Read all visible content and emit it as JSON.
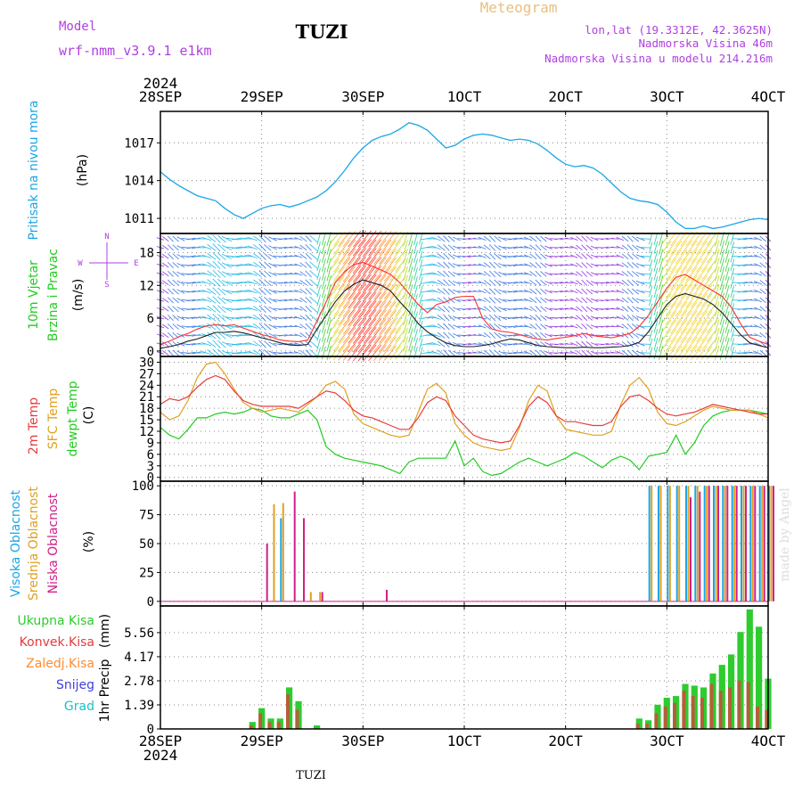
{
  "header": {
    "model_label": "Model",
    "model_name": "wrf-nmm_v3.9.1  e1km",
    "station": "TUZI",
    "product": "Meteogram",
    "location": "lon,lat (19.3312E, 42.3625N)",
    "altitude": "Nadmorska Visina 46m",
    "model_altitude": "Nadmorska Visina u modelu 214.216m",
    "footer_station": "TUZI",
    "credit": "made by Angel"
  },
  "colors": {
    "pressure": "#1aa6e6",
    "wind_speed": "#202020",
    "wind_gust": "#ff3030",
    "t2m": "#e63c3c",
    "tsfc": "#e0a020",
    "dewpoint": "#22cc22",
    "cloud_high": "#1aa6e6",
    "cloud_mid": "#e0a020",
    "cloud_low": "#d0208a",
    "precip_total": "#2ecc2e",
    "precip_conv": "#e03c3c",
    "precip_frozen": "#ff8c2e",
    "snow": "#4040e0",
    "hail": "#20c0c0",
    "label_purple": "#b040e0",
    "title_gold": "#e8c080",
    "credit": "#d8e0d8"
  },
  "time_axis": {
    "top_year": "2024",
    "bottom_year": "2024",
    "ticks": [
      "28SEP",
      "29SEP",
      "30SEP",
      "1OCT",
      "2OCT",
      "3OCT",
      "4OCT"
    ]
  },
  "wind_legend": {
    "north": "N",
    "south": "S",
    "east": "E",
    "west": "W"
  },
  "chart_data": [
    {
      "id": "pressure",
      "type": "line",
      "ylabel": "Pritisak na nivou mora",
      "unit": "(hPa)",
      "y_ticks": [
        1011,
        1014,
        1017
      ],
      "ylim": [
        1009.8,
        1019.5
      ],
      "x_range_days": [
        0,
        6
      ],
      "series": [
        {
          "values": [
            1014.7,
            1014.1,
            1013.6,
            1013.2,
            1012.8,
            1012.6,
            1012.4,
            1011.8,
            1011.3,
            1011.0,
            1011.4,
            1011.8,
            1012.0,
            1012.1,
            1011.9,
            1012.1,
            1012.4,
            1012.7,
            1013.2,
            1013.9,
            1014.8,
            1015.8,
            1016.6,
            1017.2,
            1017.5,
            1017.7,
            1018.1,
            1018.6,
            1018.4,
            1018.0,
            1017.3,
            1016.6,
            1016.8,
            1017.3,
            1017.6,
            1017.7,
            1017.6,
            1017.4,
            1017.2,
            1017.3,
            1017.2,
            1016.9,
            1016.4,
            1015.8,
            1015.3,
            1015.1,
            1015.2,
            1015.0,
            1014.5,
            1013.8,
            1013.1,
            1012.6,
            1012.4,
            1012.3,
            1012.1,
            1011.5,
            1010.7,
            1010.2,
            1010.2,
            1010.4,
            1010.2,
            1010.3,
            1010.5,
            1010.7,
            1010.9,
            1011.0,
            1010.9
          ]
        }
      ]
    },
    {
      "id": "wind",
      "type": "line",
      "ylabel": "10m Vjetar",
      "ylabel2": "Brzina i Pravac",
      "unit": "(m/s)",
      "y_ticks": [
        0,
        6,
        12,
        18
      ],
      "ylim": [
        -1,
        21.5
      ],
      "x_range_days": [
        0,
        6
      ],
      "series": [
        {
          "values": [
            0.5,
            0.8,
            1.2,
            1.8,
            2.2,
            2.8,
            3.4,
            3.4,
            3.6,
            3.3,
            2.9,
            2.4,
            2.0,
            1.5,
            1.1,
            1.0,
            1.2,
            4.0,
            6.5,
            9.0,
            11.0,
            12.2,
            13.0,
            12.5,
            12.0,
            11.0,
            9.0,
            7.2,
            5.0,
            3.5,
            2.4,
            1.5,
            1.0,
            0.8,
            0.8,
            1.0,
            1.3,
            1.8,
            2.2,
            2.0,
            1.5,
            1.0,
            0.8,
            0.7,
            0.6,
            0.6,
            0.7,
            0.6,
            0.6,
            0.7,
            0.8,
            1.0,
            1.6,
            3.5,
            6.0,
            8.5,
            10.0,
            10.5,
            10.0,
            9.5,
            8.5,
            7.0,
            5.0,
            3.0,
            1.5,
            1.0,
            0.6
          ]
        },
        {
          "values": [
            1.2,
            1.8,
            2.6,
            3.2,
            4.0,
            4.6,
            4.8,
            4.6,
            4.8,
            4.2,
            3.6,
            3.0,
            2.6,
            2.0,
            1.8,
            1.7,
            2.0,
            5.5,
            9.0,
            12.5,
            14.5,
            15.8,
            16.2,
            15.5,
            14.8,
            14.0,
            12.5,
            10.5,
            8.5,
            7.0,
            8.5,
            9.0,
            9.8,
            10.0,
            10.0,
            6.0,
            4.0,
            3.6,
            3.4,
            3.0,
            2.5,
            2.2,
            2.0,
            2.3,
            2.5,
            2.8,
            3.2,
            2.8,
            2.6,
            2.4,
            2.8,
            3.2,
            4.5,
            6.5,
            9.0,
            11.5,
            13.5,
            14.0,
            13.0,
            12.0,
            11.0,
            10.0,
            8.0,
            5.0,
            2.5,
            1.8,
            1.2
          ]
        }
      ]
    },
    {
      "id": "temperature",
      "type": "line",
      "ylabel": "2m Temp",
      "ylabel2": "SFC Temp",
      "ylabel3": "dewpt Temp",
      "unit": "(C)",
      "y_ticks": [
        0,
        3,
        6,
        9,
        12,
        15,
        18,
        21,
        24,
        27,
        30
      ],
      "ylim": [
        -1,
        31.5
      ],
      "x_range_days": [
        0,
        6
      ],
      "series": [
        {
          "values": [
            19,
            20.5,
            20,
            21,
            23.5,
            25.5,
            26.5,
            25.5,
            22.5,
            20,
            19,
            18.5,
            18.5,
            18.5,
            18.5,
            18,
            19.5,
            21,
            22.5,
            22,
            20,
            17.5,
            16,
            15.5,
            14.5,
            13.5,
            12.5,
            12.5,
            15.5,
            19.5,
            21,
            20,
            16,
            13.5,
            11,
            10,
            9.5,
            9,
            9.5,
            13.5,
            18.5,
            21,
            19.5,
            16,
            14.5,
            14.5,
            14,
            13.5,
            13.5,
            14.5,
            18.5,
            21,
            21.5,
            20,
            18,
            16.5,
            16,
            16.5,
            17,
            18,
            19,
            18.5,
            18,
            17.5,
            17,
            16.5,
            16.5
          ]
        },
        {
          "values": [
            17,
            15,
            16,
            20,
            26,
            29.5,
            30,
            27,
            23,
            19.5,
            18,
            17,
            17.5,
            18,
            17.5,
            17,
            19,
            21,
            24,
            25,
            23,
            16.5,
            14,
            13,
            12,
            11,
            10.5,
            11,
            17,
            23,
            24.5,
            22,
            14,
            11,
            9,
            8,
            7.5,
            7,
            7.5,
            13,
            20,
            24,
            22.5,
            16,
            12.5,
            12,
            11.5,
            11,
            11,
            12,
            19,
            24,
            26,
            23,
            17,
            14,
            13.5,
            14.5,
            16,
            17.5,
            18.5,
            18,
            17.5,
            17.5,
            17.5,
            16.5,
            15.5
          ]
        },
        {
          "values": [
            13,
            11,
            10,
            12.5,
            15.5,
            15.5,
            16.5,
            17,
            16.5,
            17,
            18,
            17.5,
            16,
            15.5,
            15.5,
            16.5,
            17.5,
            15,
            8,
            6,
            5,
            4.5,
            4,
            3.5,
            3,
            2,
            1,
            4,
            5,
            5,
            5,
            5,
            9.5,
            3,
            5,
            1.5,
            0.5,
            1,
            2.5,
            4,
            5,
            4,
            3,
            4,
            5,
            6.5,
            5.5,
            4,
            2.5,
            4.5,
            5.5,
            4.5,
            2,
            5.5,
            6,
            6.5,
            11,
            6,
            9,
            13.5,
            16,
            17,
            17.5,
            17.5,
            17.5,
            17,
            16.5
          ]
        }
      ]
    },
    {
      "id": "clouds",
      "type": "bar",
      "ylabel": "Visoka Oblacnost",
      "ylabel2": "Srednja Oblacnost",
      "ylabel3": "Niska Oblacnost",
      "unit": "(%)",
      "y_ticks": [
        0,
        25,
        50,
        75,
        100
      ],
      "ylim": [
        -4,
        104
      ],
      "x_range_days": [
        0,
        6
      ],
      "series": [
        {
          "values": [
            0,
            0,
            0,
            0,
            0,
            0,
            0,
            0,
            0,
            0,
            0,
            0,
            0,
            72,
            0,
            0,
            0,
            0,
            0,
            0,
            0,
            0,
            0,
            0,
            0,
            0,
            0,
            0,
            0,
            0,
            0,
            0,
            0,
            0,
            0,
            0,
            0,
            0,
            0,
            0,
            0,
            0,
            0,
            0,
            0,
            0,
            0,
            0,
            0,
            0,
            0,
            0,
            0,
            100,
            100,
            100,
            100,
            100,
            100,
            100,
            100,
            100,
            100,
            100,
            100,
            100,
            100
          ]
        },
        {
          "values": [
            0,
            0,
            0,
            0,
            0,
            0,
            0,
            0,
            0,
            0,
            0,
            0,
            84,
            85,
            0,
            0,
            8,
            8,
            0,
            0,
            0,
            0,
            0,
            0,
            0,
            0,
            0,
            0,
            0,
            0,
            0,
            0,
            0,
            0,
            0,
            0,
            0,
            0,
            0,
            0,
            0,
            0,
            0,
            0,
            0,
            0,
            0,
            0,
            0,
            0,
            0,
            0,
            0,
            100,
            100,
            100,
            100,
            100,
            100,
            100,
            100,
            100,
            100,
            100,
            100,
            100,
            100
          ]
        },
        {
          "values": [
            0,
            0,
            0,
            0,
            0,
            0,
            0,
            0,
            0,
            0,
            0,
            50,
            0,
            0,
            95,
            72,
            0,
            8,
            0,
            0,
            0,
            0,
            0,
            0,
            10,
            0,
            0,
            0,
            0,
            0,
            0,
            0,
            0,
            0,
            0,
            0,
            0,
            0,
            0,
            0,
            0,
            0,
            0,
            0,
            0,
            0,
            0,
            0,
            0,
            0,
            0,
            0,
            0,
            0,
            0,
            0,
            0,
            90,
            95,
            100,
            100,
            100,
            100,
            100,
            100,
            100,
            100
          ]
        }
      ]
    },
    {
      "id": "precip",
      "type": "bar",
      "ylabel": "1hr Precip",
      "unit": "(mm)",
      "y_ticks": [
        0,
        1.39,
        2.78,
        4.17,
        5.56
      ],
      "ylim": [
        0,
        7.1
      ],
      "x_range_days": [
        0,
        6
      ],
      "series": [
        {
          "name": "Ukupna Kisa",
          "values": [
            0,
            0,
            0,
            0,
            0,
            0,
            0,
            0,
            0,
            0,
            0.4,
            1.2,
            0.6,
            0.6,
            2.4,
            1.6,
            0,
            0.2,
            0,
            0,
            0,
            0,
            0,
            0,
            0,
            0,
            0,
            0,
            0,
            0,
            0,
            0,
            0,
            0,
            0,
            0,
            0,
            0,
            0,
            0,
            0,
            0,
            0,
            0,
            0,
            0,
            0,
            0,
            0,
            0,
            0,
            0,
            0.6,
            0.5,
            1.4,
            1.8,
            1.9,
            2.6,
            2.5,
            2.4,
            3.2,
            3.7,
            4.3,
            5.6,
            6.9,
            5.9,
            2.9
          ]
        },
        {
          "name": "Konvek.Kisa",
          "values": [
            0,
            0,
            0,
            0,
            0,
            0,
            0,
            0,
            0,
            0,
            0.2,
            0.9,
            0.4,
            0.4,
            2.0,
            1.1,
            0,
            0,
            0,
            0,
            0,
            0,
            0,
            0,
            0,
            0,
            0,
            0,
            0,
            0,
            0,
            0,
            0,
            0,
            0,
            0,
            0,
            0,
            0,
            0,
            0,
            0,
            0,
            0,
            0,
            0,
            0,
            0,
            0,
            0,
            0,
            0,
            0.3,
            0.3,
            0.9,
            1.3,
            1.5,
            2.2,
            1.9,
            1.8,
            2.6,
            2.2,
            2.4,
            2.8,
            2.7,
            1.3,
            1.1
          ]
        },
        {
          "name": "Zaledj.Kisa",
          "values": []
        },
        {
          "name": "Snijeg",
          "values": []
        },
        {
          "name": "Grad",
          "values": []
        }
      ]
    }
  ]
}
